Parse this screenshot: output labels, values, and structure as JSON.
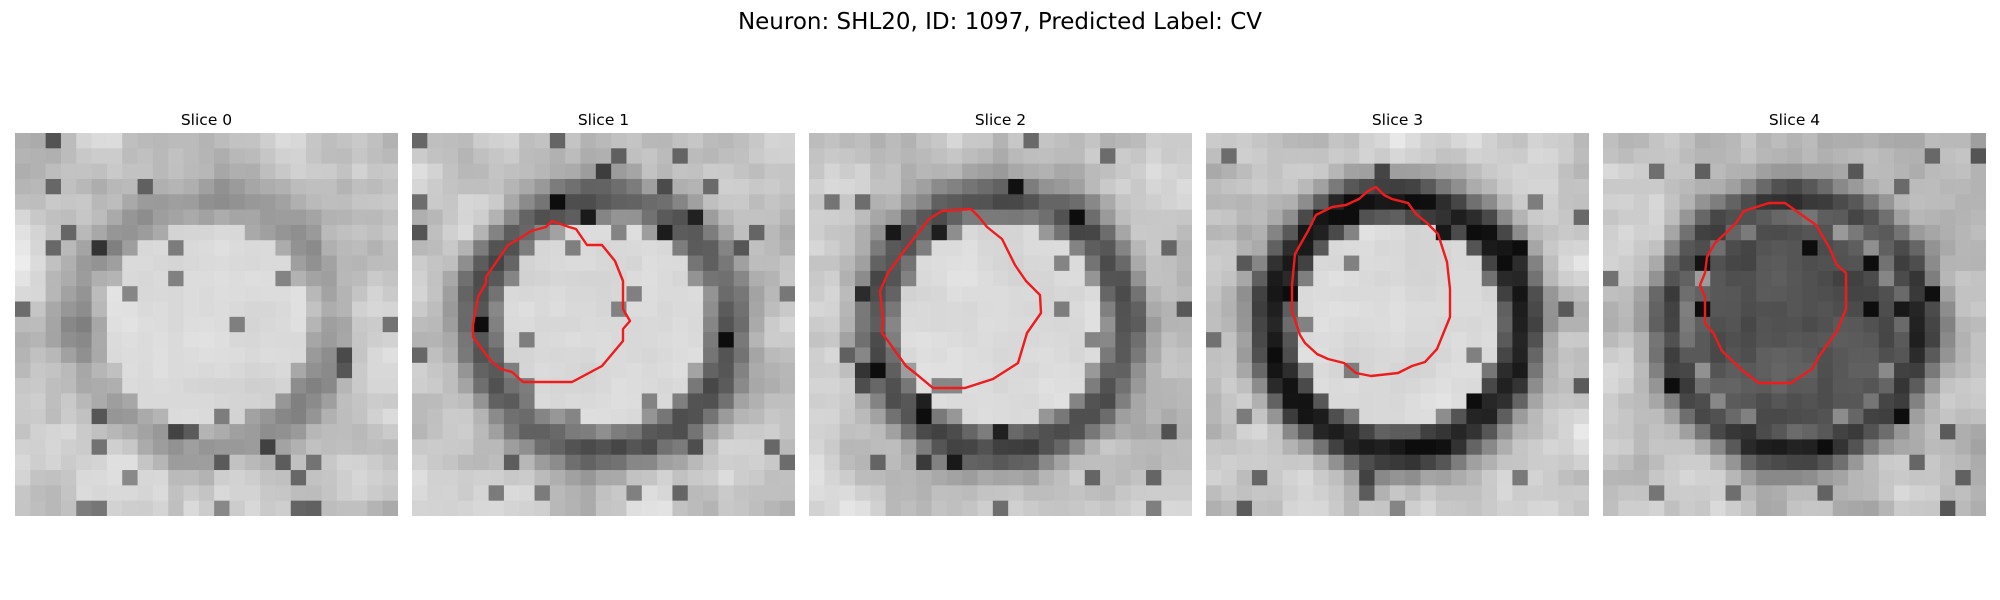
{
  "figure": {
    "title": "Neuron: SHL20, ID: 1097, Predicted Label: CV"
  },
  "slices": [
    {
      "title": "Slice 0",
      "has_contour": false,
      "seed": 11,
      "ring_strength": 0.25,
      "center_tone": "light"
    },
    {
      "title": "Slice 1",
      "has_contour": true,
      "seed": 23,
      "ring_strength": 0.55,
      "center_tone": "light"
    },
    {
      "title": "Slice 2",
      "has_contour": true,
      "seed": 37,
      "ring_strength": 0.6,
      "center_tone": "light"
    },
    {
      "title": "Slice 3",
      "has_contour": true,
      "seed": 41,
      "ring_strength": 0.85,
      "center_tone": "light"
    },
    {
      "title": "Slice 4",
      "has_contour": true,
      "seed": 53,
      "ring_strength": 0.7,
      "center_tone": "dark"
    }
  ],
  "colors": {
    "contour": "#ee1c1c",
    "background": "#ffffff"
  }
}
